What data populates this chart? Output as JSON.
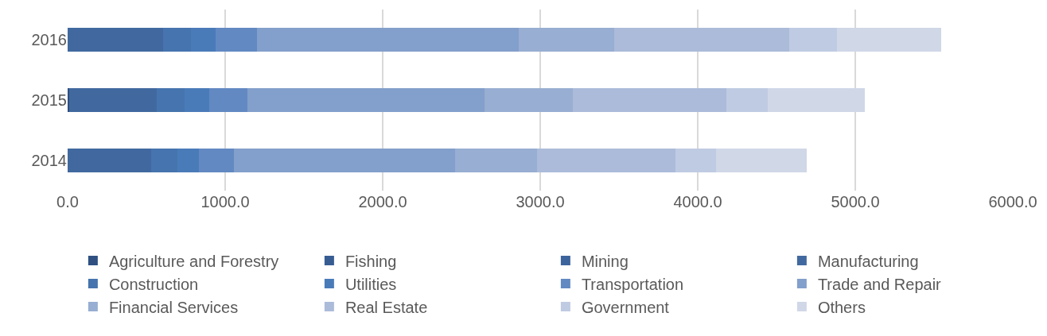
{
  "chart_data": {
    "type": "bar",
    "orientation": "horizontal",
    "stacked": true,
    "categories": [
      "2016",
      "2015",
      "2014"
    ],
    "series": [
      {
        "name": "Agriculture and Forestry",
        "color": "#2f5081",
        "values": [
          0,
          10,
          0
        ]
      },
      {
        "name": "Fishing",
        "color": "#375c92",
        "values": [
          0,
          0,
          0
        ]
      },
      {
        "name": "Mining",
        "color": "#3d639c",
        "values": [
          0,
          0,
          0
        ]
      },
      {
        "name": "Manufacturing",
        "color": "#41699f",
        "values": [
          604,
          556,
          529
        ]
      },
      {
        "name": "Construction",
        "color": "#4674ae",
        "values": [
          178,
          178,
          166
        ]
      },
      {
        "name": "Utilities",
        "color": "#4a7bb9",
        "values": [
          157,
          157,
          140
        ]
      },
      {
        "name": "Transportation",
        "color": "#6289c2",
        "values": [
          265,
          239,
          219
        ]
      },
      {
        "name": "Trade and Repair",
        "color": "#839fcb",
        "values": [
          1660,
          1506,
          1404
        ]
      },
      {
        "name": "Financial Services",
        "color": "#98aed2",
        "values": [
          607,
          561,
          520
        ]
      },
      {
        "name": "Real Estate",
        "color": "#abbbd9",
        "values": [
          1110,
          977,
          882
        ]
      },
      {
        "name": "Government",
        "color": "#bfcbe2",
        "values": [
          303,
          261,
          258
        ]
      },
      {
        "name": "Others",
        "color": "#d0d7e7",
        "values": [
          660,
          618,
          572
        ]
      }
    ],
    "xlim": [
      0,
      6000
    ],
    "xticks": [
      {
        "value": 0,
        "label": "0.0"
      },
      {
        "value": 1000,
        "label": "1000.0"
      },
      {
        "value": 2000,
        "label": "2000.0"
      },
      {
        "value": 3000,
        "label": "3000.0"
      },
      {
        "value": 4000,
        "label": "4000.0"
      },
      {
        "value": 5000,
        "label": "5000.0"
      },
      {
        "value": 6000,
        "label": "6000.0"
      }
    ],
    "grid": "x",
    "legend": "bottom"
  }
}
